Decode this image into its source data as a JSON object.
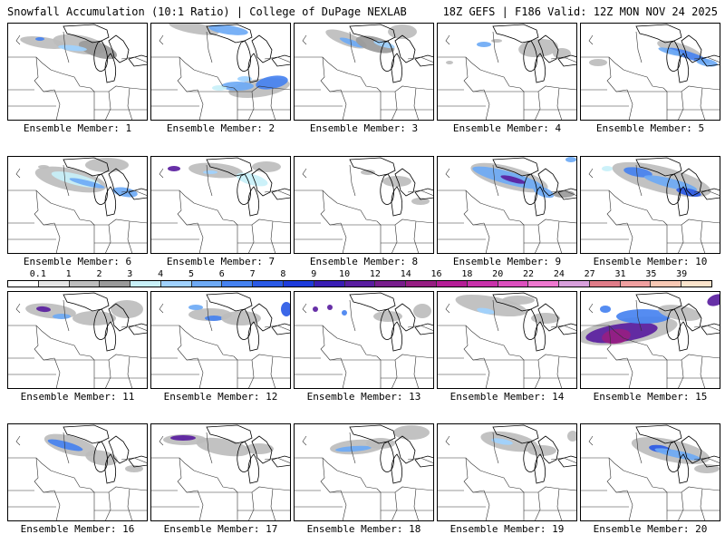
{
  "header": {
    "left": "Snowfall Accumulation (10:1 Ratio) | College of DuPage NEXLAB",
    "right": "18Z GEFS | F186 Valid: 12Z MON NOV 24 2025"
  },
  "legend": {
    "labels": [
      "0.1",
      "1",
      "2",
      "3",
      "4",
      "5",
      "6",
      "7",
      "8",
      "9",
      "10",
      "12",
      "14",
      "16",
      "18",
      "20",
      "22",
      "24",
      "27",
      "31",
      "35",
      "39"
    ],
    "colors": [
      "#ffffff",
      "#e6e6e6",
      "#bdbdbd",
      "#9a9a9a",
      "#c8f0f8",
      "#a0d2ff",
      "#6eaaf5",
      "#4682f0",
      "#2b5ae6",
      "#1e3cdc",
      "#3a1eb4",
      "#5a1ea0",
      "#781e8c",
      "#961e82",
      "#b41e96",
      "#c832aa",
      "#dc50be",
      "#ee78cf",
      "#d8a0dc",
      "#e07c88",
      "#f0a0a0",
      "#f8c8b4",
      "#fce4cc"
    ]
  },
  "panels": [
    {
      "caption": "Ensemble Member: 1"
    },
    {
      "caption": "Ensemble Member: 2"
    },
    {
      "caption": "Ensemble Member: 3"
    },
    {
      "caption": "Ensemble Member: 4"
    },
    {
      "caption": "Ensemble Member: 5"
    },
    {
      "caption": "Ensemble Member: 6"
    },
    {
      "caption": "Ensemble Member: 7"
    },
    {
      "caption": "Ensemble Member: 8"
    },
    {
      "caption": "Ensemble Member: 9"
    },
    {
      "caption": "Ensemble Member: 10"
    },
    {
      "caption": "Ensemble Member: 11"
    },
    {
      "caption": "Ensemble Member: 12"
    },
    {
      "caption": "Ensemble Member: 13"
    },
    {
      "caption": "Ensemble Member: 14"
    },
    {
      "caption": "Ensemble Member: 15"
    },
    {
      "caption": "Ensemble Member: 16"
    },
    {
      "caption": "Ensemble Member: 17"
    },
    {
      "caption": "Ensemble Member: 18"
    },
    {
      "caption": "Ensemble Member: 19"
    },
    {
      "caption": "Ensemble Member: 20"
    }
  ]
}
